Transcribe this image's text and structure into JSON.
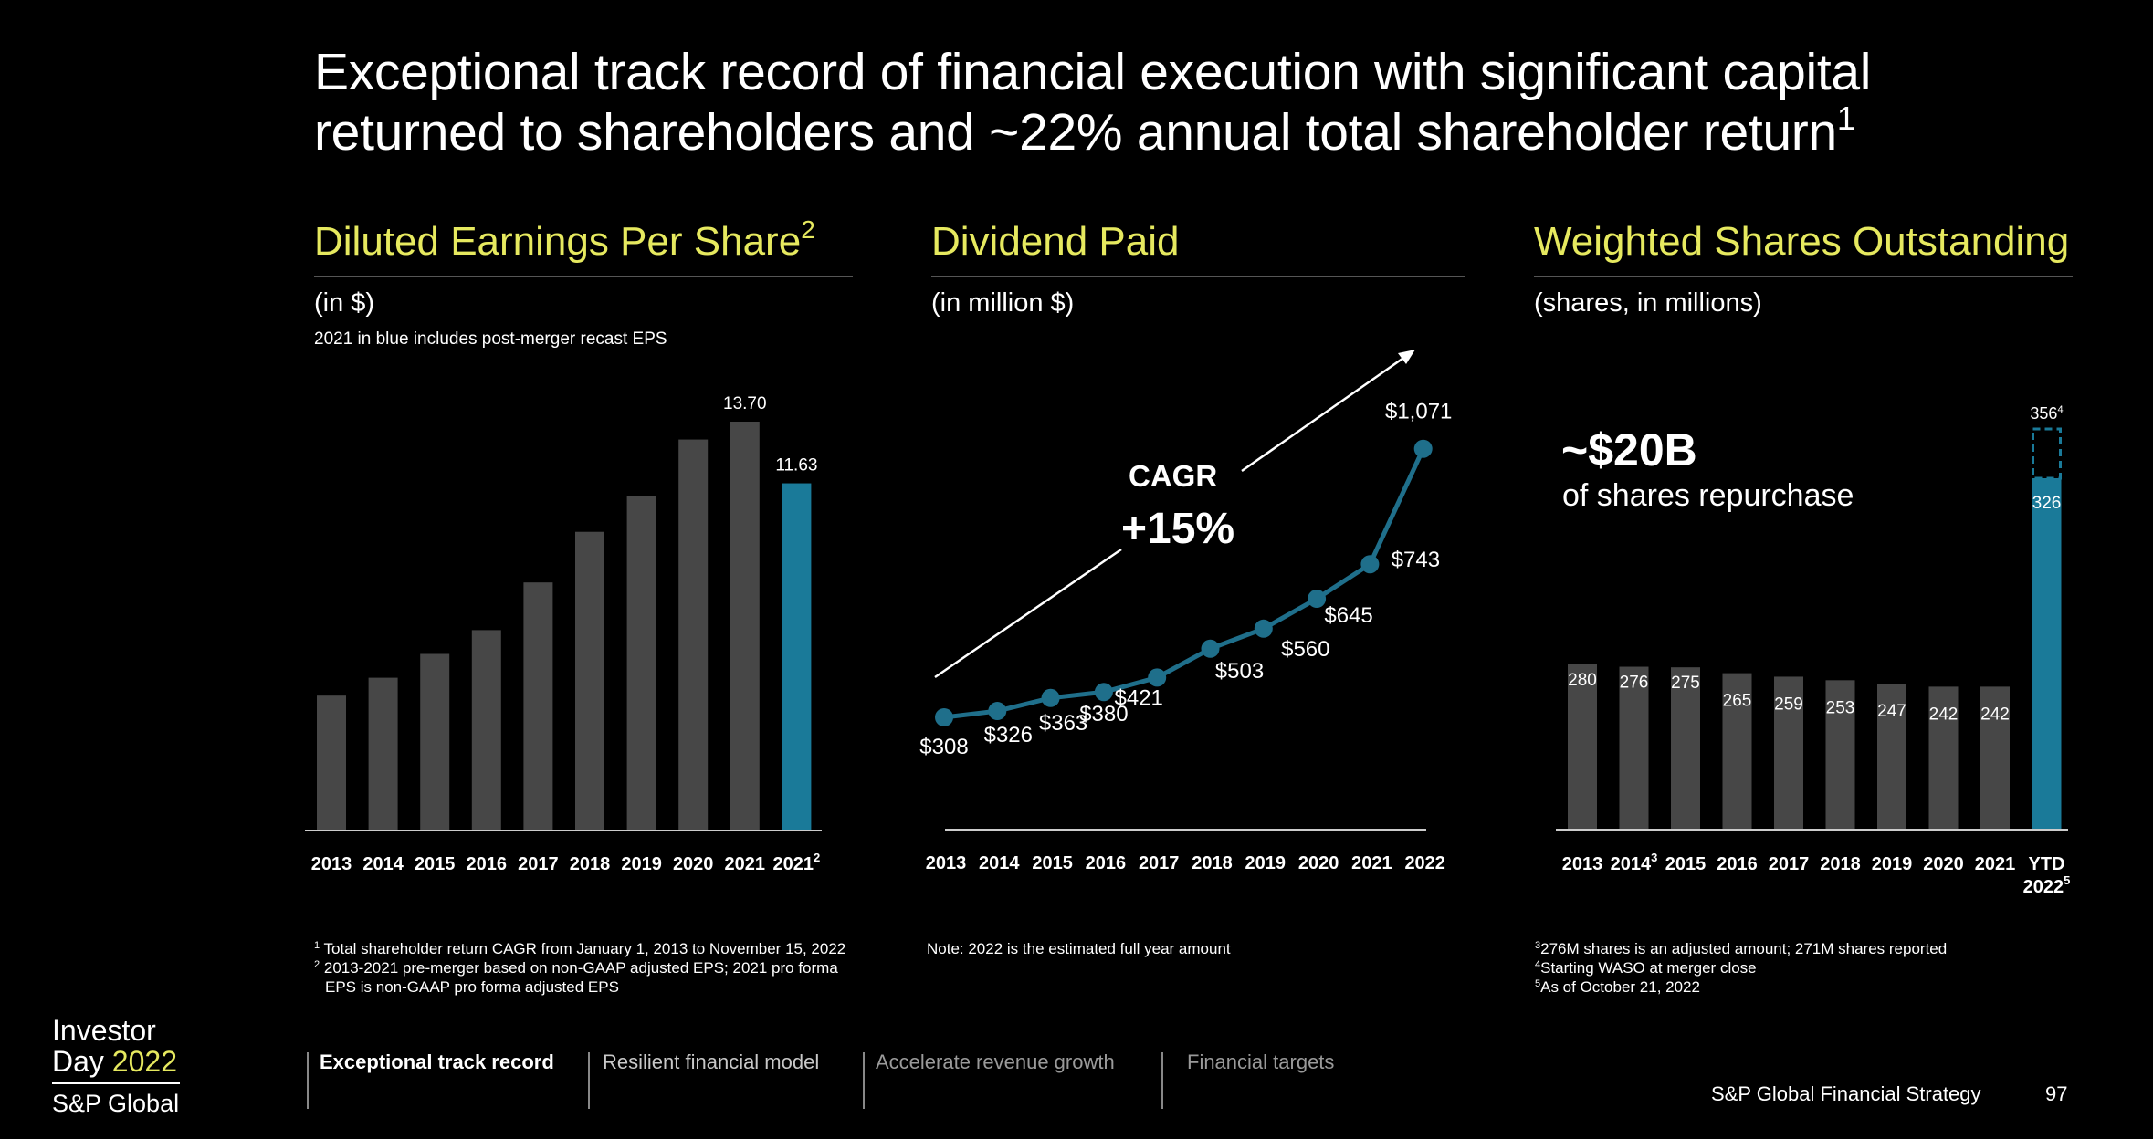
{
  "title": {
    "line1": "Exceptional track record of financial execution with significant capital",
    "line2": "returned to shareholders and ~22% annual total shareholder return",
    "sup": "1"
  },
  "panels": {
    "eps": {
      "title": "Diluted Earnings Per Share",
      "title_sup": "2",
      "unit": "(in $)",
      "note": "2021 in blue includes post-merger recast EPS"
    },
    "dividend": {
      "title": "Dividend Paid",
      "unit": "(in million $)",
      "cagr_label": "CAGR",
      "cagr_value": "+15%"
    },
    "shares": {
      "title": "Weighted Shares Outstanding",
      "unit": "(shares, in millions)",
      "callout_value": "~$20B",
      "callout_text": "of shares repurchase"
    }
  },
  "chart_data": [
    {
      "type": "bar",
      "title": "Diluted Earnings Per Share",
      "ylabel": "(in $)",
      "categories": [
        "2013",
        "2014",
        "2015",
        "2016",
        "2017",
        "2018",
        "2019",
        "2020",
        "2021",
        "2021"
      ],
      "category_sups": [
        "",
        "",
        "",
        "",
        "",
        "",
        "",
        "",
        "",
        "2"
      ],
      "values": [
        4.5,
        5.1,
        5.9,
        6.7,
        8.3,
        10.0,
        11.2,
        13.1,
        13.7,
        11.63
      ],
      "labels": [
        "",
        "",
        "",
        "",
        "",
        "",
        "",
        "",
        "13.70",
        "11.63"
      ],
      "highlight_index": 9,
      "ylim": [
        0,
        15
      ]
    },
    {
      "type": "line",
      "title": "Dividend Paid",
      "ylabel": "(in million $)",
      "x": [
        "2013",
        "2014",
        "2015",
        "2016",
        "2017",
        "2018",
        "2019",
        "2020",
        "2021",
        "2022"
      ],
      "values": [
        308,
        326,
        363,
        380,
        421,
        503,
        560,
        645,
        743,
        1071
      ],
      "labels": [
        "$308",
        "$326",
        "$363",
        "$380",
        "$421",
        "$503",
        "$560",
        "$645",
        "$743",
        "$1,071"
      ],
      "annotation": "CAGR +15%",
      "note": "2022 is the estimated full year amount"
    },
    {
      "type": "bar",
      "title": "Weighted Shares Outstanding",
      "ylabel": "(shares, in millions)",
      "categories": [
        "2013",
        "2014",
        "2015",
        "2016",
        "2017",
        "2018",
        "2019",
        "2020",
        "2021",
        "YTD 2022"
      ],
      "category_sups": [
        "",
        "3",
        "",
        "",
        "",
        "",
        "",
        "",
        "",
        "5"
      ],
      "values": [
        280,
        276,
        275,
        265,
        259,
        253,
        247,
        242,
        242,
        326
      ],
      "labels": [
        "280",
        "276",
        "275",
        "265",
        "259",
        "253",
        "247",
        "242",
        "242",
        "326"
      ],
      "highlight_index": 9,
      "dashed_extra": {
        "index": 9,
        "value": 356,
        "label": "356",
        "sup": "4"
      },
      "ylim": [
        0,
        380
      ]
    }
  ],
  "footnotes": {
    "left": [
      {
        "sup": "1",
        "text": "Total shareholder return CAGR from January 1, 2013 to November 15, 2022"
      },
      {
        "sup": "2",
        "text": "2013-2021 pre-merger based on non-GAAP adjusted EPS; 2021 pro forma"
      },
      {
        "sup": "",
        "text": "EPS is non-GAAP pro forma adjusted EPS"
      }
    ],
    "middle": "Note: 2022 is the estimated full year amount",
    "right": [
      {
        "sup": "3",
        "text": "276M shares is an adjusted amount; 271M shares reported"
      },
      {
        "sup": "4",
        "text": "Starting WASO at merger close"
      },
      {
        "sup": "5",
        "text": "As of October 21, 2022"
      }
    ]
  },
  "nav": {
    "items": [
      "Exceptional track record",
      "Resilient financial model",
      "Accelerate revenue growth",
      "Financial targets"
    ],
    "active_index": 0
  },
  "logo": {
    "line1": "Investor",
    "line2_prefix": "Day ",
    "year": "2022",
    "company": "S&P Global"
  },
  "footer": {
    "section": "S&P Global Financial Strategy",
    "page": "97"
  },
  "colors": {
    "accent_yellow": "#e6e95f",
    "highlight_blue": "#1a7a99",
    "bar_gray": "#474747",
    "line_blue": "#1f6f8b"
  }
}
